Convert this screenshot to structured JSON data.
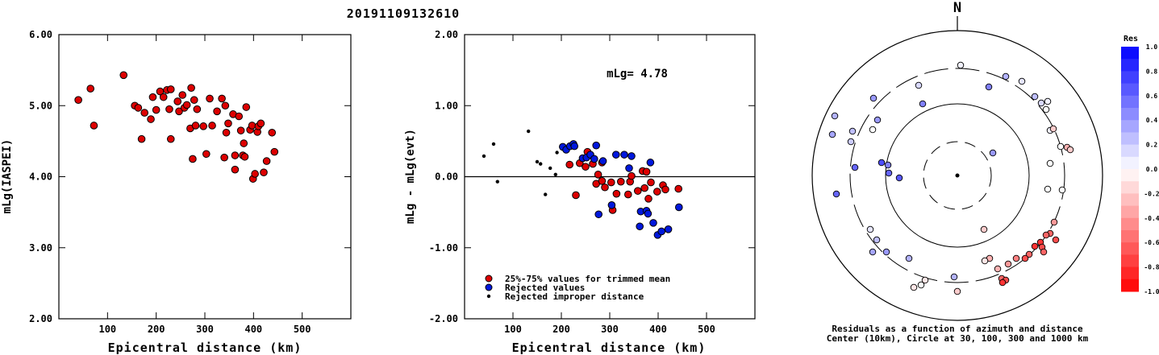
{
  "title": "20191109132610",
  "chart_data": [
    {
      "type": "scatter",
      "name": "magnitude-vs-distance",
      "xlabel": "Epicentral distance (km)",
      "ylabel": "mLg(IASPEI)",
      "xlim": [
        0,
        600
      ],
      "ylim": [
        2.0,
        6.0
      ],
      "xticks": [
        "100",
        "200",
        "300",
        "400",
        "500"
      ],
      "yticks": [
        "2.00",
        "3.00",
        "4.00",
        "5.00",
        "6.00"
      ],
      "points": [
        [
          40,
          5.08
        ],
        [
          65,
          5.24
        ],
        [
          72,
          4.72
        ],
        [
          133,
          5.43
        ],
        [
          156,
          5.0
        ],
        [
          163,
          4.97
        ],
        [
          170,
          4.53
        ],
        [
          176,
          4.9
        ],
        [
          189,
          4.81
        ],
        [
          193,
          5.12
        ],
        [
          200,
          4.94
        ],
        [
          208,
          5.2
        ],
        [
          215,
          5.12
        ],
        [
          222,
          5.22
        ],
        [
          227,
          4.95
        ],
        [
          230,
          5.23
        ],
        [
          230,
          4.53
        ],
        [
          244,
          5.06
        ],
        [
          247,
          4.92
        ],
        [
          254,
          5.15
        ],
        [
          258,
          4.97
        ],
        [
          263,
          5.01
        ],
        [
          270,
          4.68
        ],
        [
          272,
          5.25
        ],
        [
          275,
          4.25
        ],
        [
          278,
          5.08
        ],
        [
          281,
          4.72
        ],
        [
          284,
          4.95
        ],
        [
          297,
          4.71
        ],
        [
          303,
          4.32
        ],
        [
          310,
          5.1
        ],
        [
          315,
          4.72
        ],
        [
          325,
          4.92
        ],
        [
          335,
          5.1
        ],
        [
          340,
          4.27
        ],
        [
          342,
          5.0
        ],
        [
          344,
          4.62
        ],
        [
          348,
          4.75
        ],
        [
          358,
          4.88
        ],
        [
          362,
          4.3
        ],
        [
          362,
          4.1
        ],
        [
          370,
          4.85
        ],
        [
          374,
          4.65
        ],
        [
          378,
          4.3
        ],
        [
          380,
          4.47
        ],
        [
          382,
          4.28
        ],
        [
          385,
          4.98
        ],
        [
          393,
          4.66
        ],
        [
          397,
          4.72
        ],
        [
          399,
          3.97
        ],
        [
          403,
          4.04
        ],
        [
          408,
          4.63
        ],
        [
          410,
          4.71
        ],
        [
          415,
          4.75
        ],
        [
          421,
          4.06
        ],
        [
          427,
          4.22
        ],
        [
          438,
          4.62
        ],
        [
          443,
          4.35
        ]
      ]
    },
    {
      "type": "scatter",
      "name": "residual-vs-distance",
      "xlabel": "Epicentral distance (km)",
      "ylabel": "mLg - mLg(evt)",
      "xlim": [
        0,
        600
      ],
      "ylim": [
        -2.0,
        2.0
      ],
      "xticks": [
        "100",
        "200",
        "300",
        "400",
        "500"
      ],
      "yticks": [
        "-2.00",
        "-1.00",
        "0.00",
        "1.00",
        "2.00"
      ],
      "annotation": "mLg= 4.78",
      "reference_line": 0.0,
      "legend": [
        {
          "label": "25%-75% values for trimmed mean",
          "color": "#dd0000"
        },
        {
          "label": "Rejected values",
          "color": "#0018dd"
        },
        {
          "label": "Rejected improper distance",
          "color": "#000000"
        }
      ],
      "series": [
        {
          "name": "25%-75% values for trimmed mean",
          "points": [
            [
              217,
              0.17
            ],
            [
              230,
              -0.26
            ],
            [
              238,
              0.19
            ],
            [
              250,
              0.14
            ],
            [
              254,
              0.35
            ],
            [
              265,
              0.18
            ],
            [
              272,
              -0.1
            ],
            [
              276,
              0.03
            ],
            [
              284,
              -0.06
            ],
            [
              284,
              0.2
            ],
            [
              290,
              -0.15
            ],
            [
              303,
              -0.08
            ],
            [
              306,
              -0.47
            ],
            [
              314,
              -0.24
            ],
            [
              323,
              -0.07
            ],
            [
              338,
              -0.25
            ],
            [
              342,
              -0.07
            ],
            [
              345,
              0.01
            ],
            [
              358,
              -0.2
            ],
            [
              368,
              0.08
            ],
            [
              372,
              -0.16
            ],
            [
              376,
              0.07
            ],
            [
              380,
              -0.31
            ],
            [
              385,
              -0.08
            ],
            [
              398,
              -0.21
            ],
            [
              410,
              -0.12
            ],
            [
              415,
              -0.18
            ],
            [
              442,
              -0.17
            ]
          ]
        },
        {
          "name": "Rejected values",
          "points": [
            [
              203,
              0.42
            ],
            [
              210,
              0.38
            ],
            [
              218,
              0.43
            ],
            [
              225,
              0.46
            ],
            [
              227,
              0.43
            ],
            [
              244,
              0.26
            ],
            [
              252,
              0.27
            ],
            [
              260,
              0.31
            ],
            [
              268,
              0.25
            ],
            [
              272,
              0.44
            ],
            [
              277,
              -0.53
            ],
            [
              286,
              0.22
            ],
            [
              304,
              -0.4
            ],
            [
              313,
              0.31
            ],
            [
              330,
              0.31
            ],
            [
              340,
              0.12
            ],
            [
              345,
              0.29
            ],
            [
              362,
              -0.7
            ],
            [
              364,
              -0.49
            ],
            [
              376,
              -0.48
            ],
            [
              379,
              -0.52
            ],
            [
              384,
              0.2
            ],
            [
              390,
              -0.65
            ],
            [
              399,
              -0.82
            ],
            [
              407,
              -0.77
            ],
            [
              421,
              -0.74
            ],
            [
              443,
              -0.43
            ]
          ]
        },
        {
          "name": "Rejected improper distance",
          "points": [
            [
              40,
              0.29
            ],
            [
              60,
              0.46
            ],
            [
              68,
              -0.07
            ],
            [
              132,
              0.64
            ],
            [
              150,
              0.21
            ],
            [
              157,
              0.18
            ],
            [
              167,
              -0.25
            ],
            [
              177,
              0.12
            ],
            [
              188,
              0.03
            ],
            [
              191,
              0.34
            ]
          ]
        }
      ]
    },
    {
      "type": "scatter",
      "name": "polar-residuals",
      "north_label": "N",
      "caption_line1": "Residuals as a function of azimuth and distance",
      "caption_line2": "Center (10km), Circle at 30, 100, 300 and 1000 km",
      "colorbar_title": "Res",
      "colorbar_ticks": [
        "1.0",
        "0.8",
        "0.6",
        "0.4",
        "0.2",
        "0.0",
        "-0.2",
        "-0.4",
        "-0.6",
        "-0.8",
        "-1.0"
      ],
      "colors": {
        "positive": "#0000ff",
        "negative": "#ff0000",
        "neutral": "#ffffff"
      },
      "points": [
        {
          "dx": -48,
          "dy": 112,
          "res": 0.15
        },
        {
          "dx": 4,
          "dy": 137,
          "res": 0.05
        },
        {
          "dx": 39,
          "dy": 110,
          "res": 0.5
        },
        {
          "dx": 60,
          "dy": 123,
          "res": 0.3
        },
        {
          "dx": 80,
          "dy": 117,
          "res": 0.1
        },
        {
          "dx": 96,
          "dy": 98,
          "res": 0.25
        },
        {
          "dx": 104,
          "dy": 90,
          "res": 0.15
        },
        {
          "dx": 110,
          "dy": 82,
          "res": 0.0
        },
        {
          "dx": 112,
          "dy": 92,
          "res": 0.05
        },
        {
          "dx": 115,
          "dy": 56,
          "res": 0.05
        },
        {
          "dx": 119,
          "dy": 58,
          "res": -0.2
        },
        {
          "dx": 128,
          "dy": 36,
          "res": 0.0
        },
        {
          "dx": 136,
          "dy": 35,
          "res": -0.3
        },
        {
          "dx": 140,
          "dy": 32,
          "res": -0.2
        },
        {
          "dx": 115,
          "dy": 15,
          "res": 0.0
        },
        {
          "dx": 44,
          "dy": 28,
          "res": 0.4
        },
        {
          "dx": -104,
          "dy": 96,
          "res": 0.4
        },
        {
          "dx": -130,
          "dy": 55,
          "res": 0.25
        },
        {
          "dx": -43,
          "dy": 89,
          "res": 0.5
        },
        {
          "dx": -85,
          "dy": 3,
          "res": 0.6
        },
        {
          "dx": -94,
          "dy": 16,
          "res": 0.7
        },
        {
          "dx": -86,
          "dy": 13,
          "res": 0.5
        },
        {
          "dx": -99,
          "dy": 69,
          "res": 0.4
        },
        {
          "dx": -105,
          "dy": 57,
          "res": 0.0
        },
        {
          "dx": 112,
          "dy": -17,
          "res": 0.0
        },
        {
          "dx": 130,
          "dy": -18,
          "res": 0.0
        },
        {
          "dx": -132,
          "dy": 42,
          "res": 0.2
        },
        {
          "dx": -127,
          "dy": 10,
          "res": 0.6
        },
        {
          "dx": -155,
          "dy": 51,
          "res": 0.35
        },
        {
          "dx": -150,
          "dy": -23,
          "res": 0.6
        },
        {
          "dx": -152,
          "dy": 74,
          "res": 0.3
        },
        {
          "dx": -72,
          "dy": -3,
          "res": 0.65
        },
        {
          "dx": 33,
          "dy": -67,
          "res": -0.2
        },
        {
          "dx": 120,
          "dy": -58,
          "res": -0.4
        },
        {
          "dx": 115,
          "dy": -72,
          "res": -0.6
        },
        {
          "dx": 110,
          "dy": -74,
          "res": -0.6
        },
        {
          "dx": 122,
          "dy": -80,
          "res": -0.7
        },
        {
          "dx": 103,
          "dy": -83,
          "res": -0.8
        },
        {
          "dx": 96,
          "dy": -88,
          "res": -0.8
        },
        {
          "dx": 105,
          "dy": -89,
          "res": -0.7
        },
        {
          "dx": 107,
          "dy": -95,
          "res": -0.6
        },
        {
          "dx": 89,
          "dy": -98,
          "res": -0.6
        },
        {
          "dx": 84,
          "dy": -103,
          "res": -0.7
        },
        {
          "dx": 73,
          "dy": -103,
          "res": -0.5
        },
        {
          "dx": 63,
          "dy": -110,
          "res": -0.4
        },
        {
          "dx": 40,
          "dy": -103,
          "res": -0.3
        },
        {
          "dx": 50,
          "dy": -116,
          "res": -0.3
        },
        {
          "dx": 55,
          "dy": -128,
          "res": -0.6
        },
        {
          "dx": 60,
          "dy": -130,
          "res": -0.7
        },
        {
          "dx": 56,
          "dy": -133,
          "res": -0.8
        },
        {
          "dx": 34,
          "dy": -106,
          "res": -0.1
        },
        {
          "dx": -4,
          "dy": -126,
          "res": 0.3
        },
        {
          "dx": 0,
          "dy": -144,
          "res": -0.2
        },
        {
          "dx": -40,
          "dy": -130,
          "res": -0.1
        },
        {
          "dx": -45,
          "dy": -136,
          "res": 0.0
        },
        {
          "dx": -54,
          "dy": -139,
          "res": -0.1
        },
        {
          "dx": -105,
          "dy": -95,
          "res": 0.35
        },
        {
          "dx": -100,
          "dy": -80,
          "res": 0.25
        },
        {
          "dx": -88,
          "dy": -95,
          "res": 0.4
        },
        {
          "dx": -60,
          "dy": -103,
          "res": 0.3
        },
        {
          "dx": -108,
          "dy": -67,
          "res": 0.1
        }
      ]
    }
  ]
}
